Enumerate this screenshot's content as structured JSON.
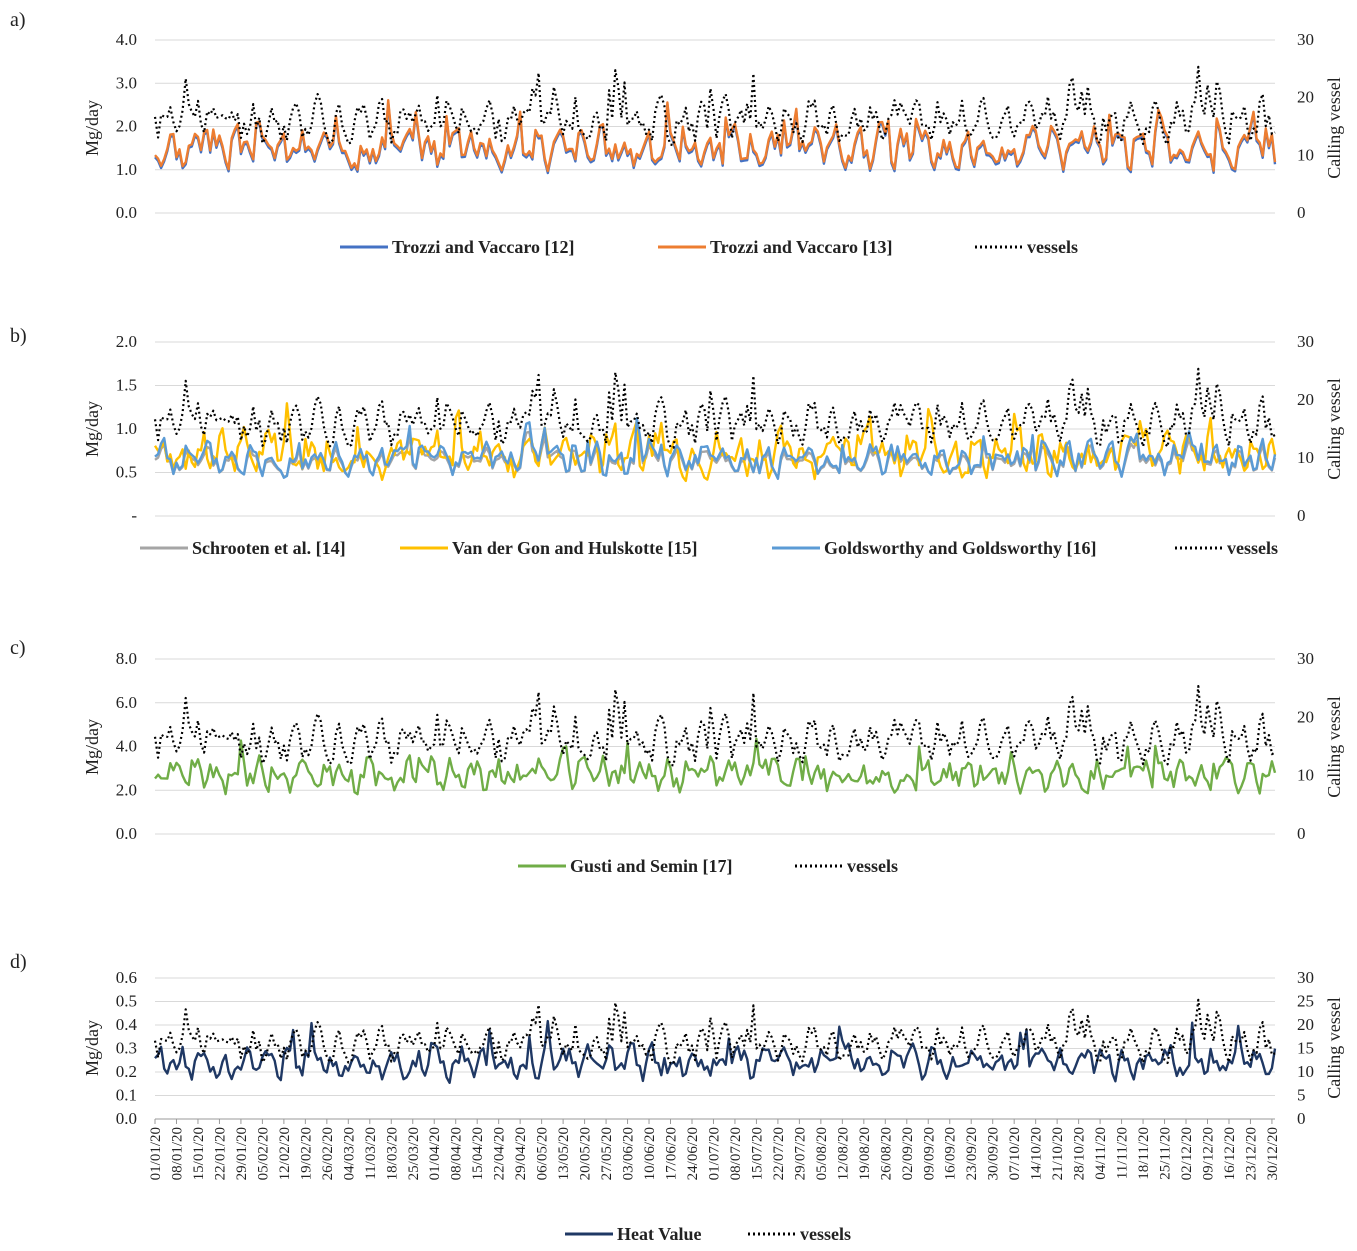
{
  "chart_data": [
    {
      "id": "a",
      "type": "line",
      "panel_label": "a)",
      "ylabel": "Mg/day",
      "y2label": "Calling vessel",
      "ylim": [
        0,
        4
      ],
      "y_ticks": [
        "0.0",
        "1.0",
        "2.0",
        "3.0",
        "4.0"
      ],
      "y2lim": [
        0,
        30
      ],
      "y2_ticks": [
        "0",
        "10",
        "20",
        "30"
      ],
      "grid": true,
      "legend_position": "bottom",
      "series": [
        {
          "name": "Trozzi and Vaccaro [12]",
          "color": "#4472c4",
          "axis": "left",
          "base": 1.45,
          "amp": 0.55,
          "seed": 3
        },
        {
          "name": "Trozzi and Vaccaro [13]",
          "color": "#ed7d31",
          "axis": "left",
          "base": 1.5,
          "amp": 0.55,
          "seed": 3
        },
        {
          "name": "vessels",
          "color": "#000000",
          "axis": "right",
          "dotted": true,
          "base": 16,
          "amp": 4.5,
          "seed": 11
        }
      ]
    },
    {
      "id": "b",
      "type": "line",
      "panel_label": "b)",
      "ylabel": "Mg/day",
      "y2label": "Calling vessel",
      "ylim": [
        0,
        2
      ],
      "y_ticks": [
        "-",
        "0.5",
        "1.0",
        "1.5",
        "2.0"
      ],
      "y2lim": [
        0,
        30
      ],
      "y2_ticks": [
        "0",
        "10",
        "20",
        "30"
      ],
      "grid": true,
      "legend_position": "bottom",
      "series": [
        {
          "name": "Schrooten et al. [14]",
          "color": "#a5a5a5",
          "axis": "left",
          "base": 0.62,
          "amp": 0.18,
          "seed": 5
        },
        {
          "name": "Van der Gon and Hulskotte [15]",
          "color": "#ffc000",
          "axis": "left",
          "base": 0.72,
          "amp": 0.3,
          "seed": 7
        },
        {
          "name": "Goldsworthy and Goldsworthy [16]",
          "color": "#5b9bd5",
          "axis": "left",
          "base": 0.65,
          "amp": 0.22,
          "seed": 5
        },
        {
          "name": "vessels",
          "color": "#000000",
          "axis": "right",
          "dotted": true,
          "base": 16,
          "amp": 4.5,
          "seed": 11
        }
      ]
    },
    {
      "id": "c",
      "type": "line",
      "panel_label": "c)",
      "ylabel": "Mg/day",
      "y2label": "Calling vessel",
      "ylim": [
        0,
        8
      ],
      "y_ticks": [
        "0.0",
        "2.0",
        "4.0",
        "6.0",
        "8.0"
      ],
      "y2lim": [
        0,
        30
      ],
      "y2_ticks": [
        "0",
        "10",
        "20",
        "30"
      ],
      "grid": true,
      "legend_position": "bottom",
      "series": [
        {
          "name": "Gusti and Semin [17]",
          "color": "#70ad47",
          "axis": "left",
          "base": 2.7,
          "amp": 0.9,
          "seed": 9
        },
        {
          "name": "vessels",
          "color": "#000000",
          "axis": "right",
          "dotted": true,
          "base": 16,
          "amp": 4.5,
          "seed": 11
        }
      ]
    },
    {
      "id": "d",
      "type": "line",
      "panel_label": "d)",
      "ylabel": "Mg/day",
      "y2label": "Calling vessel",
      "ylim": [
        0,
        0.6
      ],
      "y_ticks": [
        "0.0",
        "0.1",
        "0.2",
        "0.3",
        "0.4",
        "0.5",
        "0.6"
      ],
      "y2lim": [
        0,
        30
      ],
      "y2_ticks": [
        "0",
        "5",
        "10",
        "15",
        "20",
        "25",
        "30"
      ],
      "grid": true,
      "legend_position": "bottom",
      "series": [
        {
          "name": "Heat Value",
          "color": "#1f3864",
          "axis": "left",
          "base": 0.24,
          "amp": 0.08,
          "seed": 13
        },
        {
          "name": "vessels",
          "color": "#000000",
          "axis": "right",
          "dotted": true,
          "base": 16,
          "amp": 4.5,
          "seed": 11
        }
      ]
    }
  ],
  "x_categories": [
    "01/01/20",
    "08/01/20",
    "15/01/20",
    "22/01/20",
    "29/01/20",
    "05/02/20",
    "12/02/20",
    "19/02/20",
    "26/02/20",
    "04/03/20",
    "11/03/20",
    "18/03/20",
    "25/03/20",
    "01/04/20",
    "08/04/20",
    "15/04/20",
    "22/04/20",
    "29/04/20",
    "06/05/20",
    "13/05/20",
    "20/05/20",
    "27/05/20",
    "03/06/20",
    "10/06/20",
    "17/06/20",
    "24/06/20",
    "01/07/20",
    "08/07/20",
    "15/07/20",
    "22/07/20",
    "29/07/20",
    "05/08/20",
    "12/08/20",
    "19/08/20",
    "26/08/20",
    "02/09/20",
    "09/09/20",
    "16/09/20",
    "23/09/20",
    "30/09/20",
    "07/10/20",
    "14/10/20",
    "21/10/20",
    "28/10/20",
    "04/11/20",
    "11/11/20",
    "18/11/20",
    "25/11/20",
    "02/12/20",
    "09/12/20",
    "16/12/20",
    "23/12/20",
    "30/12/20"
  ],
  "n_days": 366
}
